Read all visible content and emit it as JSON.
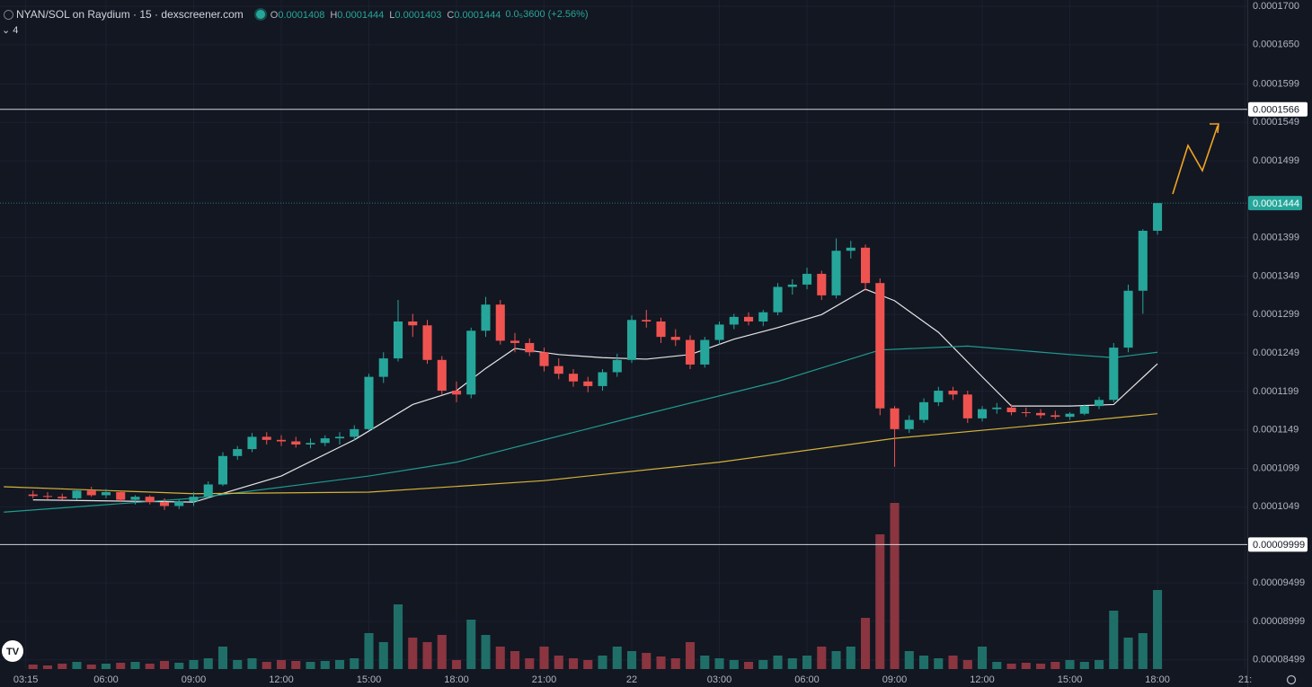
{
  "chart_data": {
    "type": "candlestick",
    "title": "NYAN/SOL on Raydium · 15 · dexscreener.com",
    "ohlc_legend": [
      {
        "key": "O",
        "value": "0.0001408"
      },
      {
        "key": "H",
        "value": "0.0001444"
      },
      {
        "key": "L",
        "value": "0.0001403"
      },
      {
        "key": "C",
        "value": "0.0001444"
      }
    ],
    "change": "0.0₅3600 (+2.56%)",
    "indicators": "4",
    "xlim": [
      -2.26,
      83.15
    ],
    "ylim": [
      8.379e-05,
      0.00017082
    ],
    "xticks": [
      {
        "value": -0.5,
        "label": "03:15"
      },
      {
        "value": 5,
        "label": "06:00"
      },
      {
        "value": 11,
        "label": "09:00"
      },
      {
        "value": 17,
        "label": "12:00"
      },
      {
        "value": 23,
        "label": "15:00"
      },
      {
        "value": 29,
        "label": "18:00"
      },
      {
        "value": 35,
        "label": "21:00"
      },
      {
        "value": 41,
        "label": "22"
      },
      {
        "value": 47,
        "label": "03:00"
      },
      {
        "value": 53,
        "label": "06:00"
      },
      {
        "value": 59,
        "label": "09:00"
      },
      {
        "value": 65,
        "label": "12:00"
      },
      {
        "value": 71,
        "label": "15:00"
      },
      {
        "value": 77,
        "label": "18:00"
      },
      {
        "value": 83,
        "label": "21:"
      }
    ],
    "yticks": [
      {
        "value": 0.00017,
        "label": "0.0001700"
      },
      {
        "value": 0.000165,
        "label": "0.0001650"
      },
      0.0001599,
      0.0001549,
      0.0001499,
      0.0001399,
      0.0001349,
      0.0001299,
      0.0001249,
      0.0001199,
      0.0001149,
      0.0001099,
      0.0001049,
      9.499e-05,
      8.999e-05,
      8.499e-05
    ],
    "up_color": "#26a69a",
    "down_color": "#ef5350",
    "volume_colors": [
      "#1f6f68",
      "#8a3540"
    ],
    "volume_lim": [
      0,
      200
    ],
    "open": [
      0.0001065,
      0.0001063,
      0.0001062,
      0.000106,
      0.000107,
      0.0001064,
      0.0001068,
      0.0001058,
      0.0001062,
      0.0001055,
      0.000105,
      0.0001056,
      0.0001062,
      0.0001078,
      0.0001115,
      0.0001124,
      0.000114,
      0.0001136,
      0.0001134,
      0.000113,
      0.0001132,
      0.0001138,
      0.000114,
      0.000115,
      0.0001218,
      0.0001242,
      0.000129,
      0.0001285,
      0.000124,
      0.00012,
      0.0001195,
      0.0001278,
      0.0001312,
      0.0001265,
      0.0001262,
      0.000125,
      0.0001232,
      0.0001222,
      0.0001212,
      0.0001206,
      0.0001224,
      0.000124,
      0.0001292,
      0.000129,
      0.000127,
      0.0001266,
      0.0001234,
      0.0001266,
      0.0001286,
      0.0001296,
      0.000129,
      0.0001302,
      0.0001335,
      0.0001338,
      0.0001352,
      0.0001324,
      0.0001382,
      0.0001386,
      0.000134,
      0.0001177,
      0.000115,
      0.0001162,
      0.0001185,
      0.00012,
      0.0001195,
      0.0001164,
      0.0001176,
      0.0001178,
      0.0001172,
      0.0001171,
      0.0001168,
      0.0001166,
      0.000117,
      0.000118,
      0.0001188,
      0.0001256,
      0.000133,
      0.0001408
    ],
    "high": [
      0.000107,
      0.0001068,
      0.0001066,
      0.0001072,
      0.0001075,
      0.0001072,
      0.000107,
      0.0001064,
      0.0001064,
      0.000106,
      0.0001058,
      0.0001068,
      0.0001082,
      0.000112,
      0.0001128,
      0.0001145,
      0.0001146,
      0.0001142,
      0.000114,
      0.0001138,
      0.0001142,
      0.0001146,
      0.0001155,
      0.0001222,
      0.000125,
      0.0001318,
      0.00013,
      0.0001292,
      0.0001245,
      0.0001212,
      0.0001282,
      0.0001322,
      0.0001318,
      0.0001275,
      0.0001268,
      0.0001256,
      0.0001242,
      0.0001228,
      0.0001218,
      0.0001228,
      0.0001248,
      0.0001298,
      0.0001305,
      0.0001295,
      0.000128,
      0.0001272,
      0.000127,
      0.000129,
      0.00013,
      0.0001302,
      0.0001305,
      0.000134,
      0.0001345,
      0.000136,
      0.0001356,
      0.0001398,
      0.0001395,
      0.000139,
      0.0001346,
      0.000118,
      0.0001168,
      0.000119,
      0.0001205,
      0.0001205,
      0.00012,
      0.000118,
      0.0001184,
      0.0001182,
      0.0001178,
      0.0001176,
      0.0001174,
      0.0001172,
      0.0001182,
      0.0001192,
      0.0001262,
      0.0001338,
      0.000141,
      0.0001444
    ],
    "low": [
      0.000106,
      0.0001058,
      0.0001058,
      0.0001058,
      0.0001062,
      0.000106,
      0.0001055,
      0.0001052,
      0.0001052,
      0.0001045,
      0.0001046,
      0.000105,
      0.000106,
      0.0001076,
      0.000111,
      0.000112,
      0.000113,
      0.0001128,
      0.0001126,
      0.0001125,
      0.0001128,
      0.000113,
      0.0001135,
      0.0001148,
      0.000121,
      0.0001238,
      0.000127,
      0.0001235,
      0.0001195,
      0.0001185,
      0.000119,
      0.000127,
      0.000126,
      0.000125,
      0.0001245,
      0.0001225,
      0.0001215,
      0.0001205,
      0.0001198,
      0.00012,
      0.0001218,
      0.0001236,
      0.0001282,
      0.0001262,
      0.0001258,
      0.0001228,
      0.000123,
      0.000126,
      0.000128,
      0.0001285,
      0.0001284,
      0.0001298,
      0.0001325,
      0.0001332,
      0.0001318,
      0.000132,
      0.0001372,
      0.000133,
      0.0001168,
      0.0001101,
      0.0001145,
      0.0001158,
      0.000118,
      0.0001188,
      0.0001158,
      0.000116,
      0.000117,
      0.0001168,
      0.0001166,
      0.0001164,
      0.0001163,
      0.0001162,
      0.0001168,
      0.0001176,
      0.0001185,
      0.000125,
      0.00013,
      0.0001403
    ],
    "close": [
      0.0001063,
      0.0001062,
      0.000106,
      0.000107,
      0.0001064,
      0.0001068,
      0.0001058,
      0.0001062,
      0.0001055,
      0.000105,
      0.0001056,
      0.0001062,
      0.0001078,
      0.0001115,
      0.0001124,
      0.000114,
      0.0001136,
      0.0001134,
      0.000113,
      0.0001132,
      0.0001138,
      0.000114,
      0.000115,
      0.0001218,
      0.0001242,
      0.000129,
      0.0001285,
      0.000124,
      0.00012,
      0.0001195,
      0.0001278,
      0.0001312,
      0.0001265,
      0.0001262,
      0.000125,
      0.0001232,
      0.0001222,
      0.0001212,
      0.0001206,
      0.0001224,
      0.000124,
      0.0001292,
      0.000129,
      0.000127,
      0.0001266,
      0.0001234,
      0.0001266,
      0.0001286,
      0.0001296,
      0.000129,
      0.0001302,
      0.0001335,
      0.0001338,
      0.0001352,
      0.0001324,
      0.0001382,
      0.0001386,
      0.000134,
      0.0001177,
      0.000115,
      0.0001162,
      0.0001185,
      0.00012,
      0.0001195,
      0.0001164,
      0.0001176,
      0.0001178,
      0.0001172,
      0.0001171,
      0.0001168,
      0.0001166,
      0.000117,
      0.000118,
      0.0001188,
      0.0001256,
      0.000133,
      0.0001408,
      0.0001444
    ],
    "volume": [
      5,
      4,
      6,
      8,
      5,
      6,
      7,
      8,
      6,
      9,
      7,
      10,
      12,
      25,
      10,
      12,
      8,
      10,
      9,
      8,
      9,
      10,
      12,
      40,
      30,
      72,
      35,
      30,
      38,
      10,
      55,
      38,
      25,
      20,
      12,
      25,
      15,
      12,
      10,
      15,
      25,
      20,
      18,
      14,
      12,
      30,
      15,
      12,
      10,
      8,
      10,
      15,
      12,
      15,
      25,
      20,
      25,
      57,
      150,
      185,
      20,
      15,
      12,
      15,
      10,
      25,
      8,
      6,
      7,
      6,
      8,
      10,
      8,
      10,
      65,
      35,
      40,
      88
    ],
    "ma_lines": [
      {
        "color": "#e6e6e6",
        "x": [
          0,
          11,
          17,
          22,
          26,
          29,
          31,
          33,
          36,
          39,
          42,
          45,
          48,
          51,
          54,
          57,
          59,
          62,
          65,
          67,
          71,
          74,
          77
        ],
        "values": [
          0.0001058,
          0.0001055,
          0.0001089,
          0.0001136,
          0.0001182,
          0.00012,
          0.0001229,
          0.0001255,
          0.0001247,
          0.0001243,
          0.0001241,
          0.0001247,
          0.0001267,
          0.0001282,
          0.0001299,
          0.0001332,
          0.0001317,
          0.0001276,
          0.0001218,
          0.000118,
          0.000118,
          0.0001182,
          0.0001235
        ]
      },
      {
        "color": "#1f9c8f",
        "x": [
          -2,
          11,
          23,
          29,
          41,
          51,
          58,
          64,
          71,
          74,
          77
        ],
        "values": [
          0.0001042,
          0.000106,
          0.0001089,
          0.0001107,
          0.0001165,
          0.0001212,
          0.0001253,
          0.0001258,
          0.0001247,
          0.0001243,
          0.000125
        ]
      },
      {
        "color": "#d4b23a",
        "x": [
          -2,
          11,
          23,
          35,
          47,
          59,
          71,
          77
        ],
        "values": [
          0.0001075,
          0.0001066,
          0.0001068,
          0.0001083,
          0.0001107,
          0.0001138,
          0.0001159,
          0.000117
        ]
      }
    ],
    "hlines": [
      0.0001566,
      9.999e-05
    ],
    "last_price": 0.0001444
  }
}
